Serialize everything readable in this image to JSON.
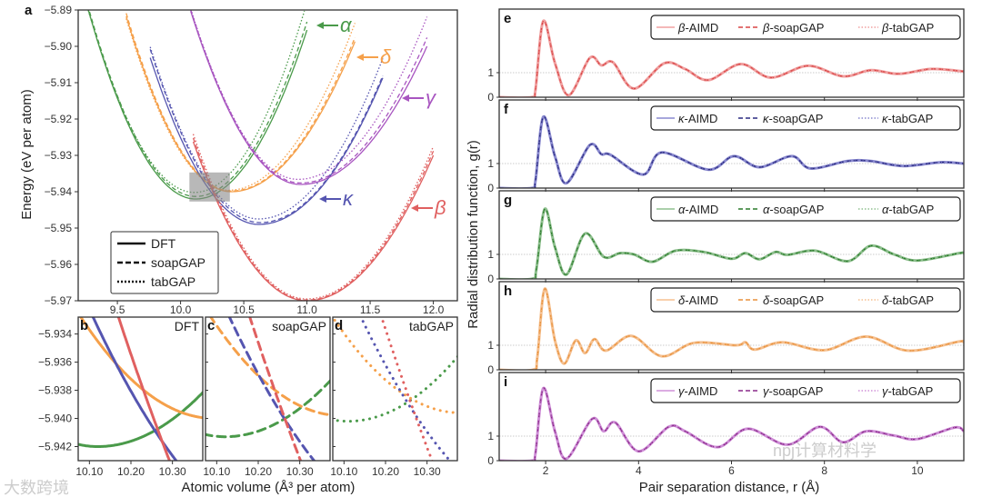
{
  "chart_data": [
    {
      "id": "a",
      "type": "line",
      "panel_label": "a",
      "ylabel": "Energy (eV per atom)",
      "xlim": [
        9.19,
        12.19
      ],
      "ylim": [
        -5.97,
        -5.89
      ],
      "xticks": [
        9.5,
        10.0,
        10.5,
        11.0,
        11.5,
        12.0
      ],
      "xtick_labels": [
        "9.5",
        "10.0",
        "10.5",
        "11.0",
        "11.5",
        "12.0"
      ],
      "yticks": [
        -5.89,
        -5.9,
        -5.91,
        -5.92,
        -5.93,
        -5.94,
        -5.95,
        -5.96,
        -5.97
      ],
      "ytick_labels": [
        "−5.89",
        "−5.90",
        "−5.91",
        "−5.92",
        "−5.93",
        "−5.94",
        "−5.95",
        "−5.96",
        "−5.97"
      ],
      "legend": {
        "placement": "bottom-left",
        "entries": [
          {
            "label": "DFT",
            "style": "solid"
          },
          {
            "label": "soapGAP",
            "style": "dashed"
          },
          {
            "label": "tabGAP",
            "style": "dotted"
          }
        ]
      },
      "highlight_box": {
        "x": [
          10.07,
          10.39
        ],
        "y": [
          -5.9427,
          -5.9347
        ]
      },
      "phases": [
        {
          "name": "α",
          "color": "#4a9a4a",
          "range": [
            9.27,
            11.0
          ],
          "DFT": {
            "V0": 10.12,
            "E0": -5.942,
            "kL": 0.072,
            "kR": 0.06
          },
          "soapGAP": {
            "V0": 10.12,
            "E0": -5.9413,
            "kL": 0.072,
            "kR": 0.062
          },
          "tabGAP": {
            "V0": 10.11,
            "E0": -5.9402,
            "kL": 0.071,
            "kR": 0.066
          }
        },
        {
          "name": "δ",
          "color": "#f5a04a",
          "range": [
            9.57,
            11.38
          ],
          "DFT": {
            "V0": 10.4,
            "E0": -5.94,
            "kL": 0.07,
            "kR": 0.043
          },
          "soapGAP": {
            "V0": 10.4,
            "E0": -5.9398,
            "kL": 0.071,
            "kR": 0.044
          },
          "tabGAP": {
            "V0": 10.38,
            "E0": -5.9396,
            "kL": 0.072,
            "kR": 0.046
          }
        },
        {
          "name": "κ",
          "color": "#5555b0",
          "range": [
            9.76,
            11.6
          ],
          "DFT": {
            "V0": 10.62,
            "E0": -5.949,
            "kL": 0.062,
            "kR": 0.042
          },
          "soapGAP": {
            "V0": 10.63,
            "E0": -5.9485,
            "kL": 0.063,
            "kR": 0.043
          },
          "tabGAP": {
            "V0": 10.62,
            "E0": -5.9475,
            "kL": 0.064,
            "kR": 0.046
          }
        },
        {
          "name": "γ",
          "color": "#a855c0",
          "range": [
            10.05,
            11.95
          ],
          "DFT": {
            "V0": 10.95,
            "E0": -5.938,
            "kL": 0.063,
            "kR": 0.038
          },
          "soapGAP": {
            "V0": 10.95,
            "E0": -5.9376,
            "kL": 0.063,
            "kR": 0.04
          },
          "tabGAP": {
            "V0": 10.93,
            "E0": -5.9366,
            "kL": 0.065,
            "kR": 0.043
          }
        },
        {
          "name": "β",
          "color": "#e06060",
          "range": [
            10.1,
            12.0
          ],
          "DFT": {
            "V0": 11.0,
            "E0": -5.97,
            "kL": 0.054,
            "kR": 0.04
          },
          "soapGAP": {
            "V0": 11.0,
            "E0": -5.9698,
            "kL": 0.055,
            "kR": 0.041
          },
          "tabGAP": {
            "V0": 11.0,
            "E0": -5.9695,
            "kL": 0.056,
            "kR": 0.042
          }
        }
      ]
    },
    {
      "id": "bcd",
      "type": "line",
      "xlabel": "Atomic volume (Å³ per atom)",
      "xlim": [
        10.073,
        10.373
      ],
      "ylim": [
        -5.943,
        -5.9328
      ],
      "xticks": [
        10.1,
        10.2,
        10.3
      ],
      "xtick_labels": [
        "10.10",
        "10.20",
        "10.30"
      ],
      "yticks": [
        -5.934,
        -5.936,
        -5.938,
        -5.94,
        -5.942
      ],
      "ytick_labels": [
        "−5.934",
        "−5.936",
        "−5.938",
        "−5.940",
        "−5.942"
      ],
      "insets": [
        {
          "panel_label": "b",
          "title": "DFT",
          "method": "DFT"
        },
        {
          "panel_label": "c",
          "title": "soapGAP",
          "method": "soapGAP"
        },
        {
          "panel_label": "d",
          "title": "tabGAP",
          "method": "tabGAP"
        }
      ]
    },
    {
      "id": "rdf",
      "type": "line",
      "xlabel": "Pair separation distance, r (Å)",
      "ylabel": "Radial distribution function, g(r)",
      "xlim": [
        1,
        11
      ],
      "ylim": [
        0,
        3.59
      ],
      "xticks": [
        2,
        4,
        6,
        8,
        10
      ],
      "xtick_labels": [
        "2",
        "4",
        "6",
        "8",
        "10"
      ],
      "yticks": [
        0,
        1
      ],
      "ytick_labels": [
        "0",
        "1"
      ],
      "panels": [
        {
          "panel_label": "e",
          "color": "#f0a0a0",
          "dark": "#d94545",
          "legend": [
            "β-AIMD",
            "β-soapGAP",
            "β-tabGAP"
          ],
          "points": [
            [
              1,
              0
            ],
            [
              1.7,
              0
            ],
            [
              1.78,
              0.3
            ],
            [
              1.95,
              3.1
            ],
            [
              2.2,
              1.4
            ],
            [
              2.5,
              0.08
            ],
            [
              2.95,
              1.6
            ],
            [
              3.2,
              1.3
            ],
            [
              3.45,
              1.42
            ],
            [
              3.9,
              0.35
            ],
            [
              4.55,
              1.38
            ],
            [
              5.0,
              1.15
            ],
            [
              5.5,
              0.7
            ],
            [
              6.2,
              1.35
            ],
            [
              6.85,
              0.8
            ],
            [
              7.65,
              1.28
            ],
            [
              8.4,
              0.85
            ],
            [
              9.0,
              1.1
            ],
            [
              9.6,
              0.95
            ],
            [
              10.3,
              1.15
            ],
            [
              11,
              1.05
            ]
          ]
        },
        {
          "panel_label": "f",
          "color": "#8a8ad0",
          "dark": "#2a2a80",
          "legend": [
            "κ-AIMD",
            "κ-soapGAP",
            "κ-tabGAP"
          ],
          "points": [
            [
              1,
              0
            ],
            [
              1.7,
              0
            ],
            [
              1.78,
              0.3
            ],
            [
              1.95,
              2.9
            ],
            [
              2.2,
              1.3
            ],
            [
              2.45,
              0.2
            ],
            [
              2.95,
              1.75
            ],
            [
              3.2,
              1.38
            ],
            [
              3.4,
              1.35
            ],
            [
              4.1,
              0.55
            ],
            [
              4.5,
              1.45
            ],
            [
              5.5,
              0.75
            ],
            [
              6.05,
              1.3
            ],
            [
              6.6,
              0.85
            ],
            [
              7.3,
              1.3
            ],
            [
              7.7,
              0.8
            ],
            [
              8.5,
              1.1
            ],
            [
              9.0,
              1.1
            ],
            [
              9.7,
              0.9
            ],
            [
              10.5,
              1.05
            ],
            [
              11,
              1.0
            ]
          ]
        },
        {
          "panel_label": "g",
          "color": "#8fc08f",
          "dark": "#2a7a2a",
          "legend": [
            "α-AIMD",
            "α-soapGAP",
            "α-tabGAP"
          ],
          "points": [
            [
              1,
              0
            ],
            [
              1.7,
              0
            ],
            [
              1.8,
              0.4
            ],
            [
              1.98,
              2.85
            ],
            [
              2.2,
              1.3
            ],
            [
              2.45,
              0.18
            ],
            [
              2.85,
              1.85
            ],
            [
              3.25,
              0.9
            ],
            [
              3.6,
              1.05
            ],
            [
              3.9,
              1.0
            ],
            [
              4.3,
              0.7
            ],
            [
              4.8,
              1.15
            ],
            [
              5.4,
              1.1
            ],
            [
              6.0,
              0.82
            ],
            [
              6.3,
              1.05
            ],
            [
              6.6,
              0.8
            ],
            [
              6.95,
              1.1
            ],
            [
              7.2,
              0.98
            ],
            [
              7.8,
              1.15
            ],
            [
              8.5,
              0.72
            ],
            [
              9.0,
              1.35
            ],
            [
              9.5,
              1.0
            ],
            [
              10.0,
              0.75
            ],
            [
              10.9,
              1.05
            ],
            [
              11,
              1.05
            ]
          ]
        },
        {
          "panel_label": "h",
          "color": "#f5c090",
          "dark": "#e8903a",
          "legend": [
            "δ-AIMD",
            "δ-soapGAP",
            "δ-tabGAP"
          ],
          "points": [
            [
              1,
              0
            ],
            [
              1.72,
              0
            ],
            [
              1.82,
              0.5
            ],
            [
              1.98,
              3.3
            ],
            [
              2.2,
              1.2
            ],
            [
              2.4,
              0.25
            ],
            [
              2.65,
              1.2
            ],
            [
              2.85,
              0.68
            ],
            [
              3.05,
              1.25
            ],
            [
              3.3,
              0.78
            ],
            [
              3.85,
              1.38
            ],
            [
              4.5,
              0.55
            ],
            [
              5.2,
              1.1
            ],
            [
              6.1,
              1.0
            ],
            [
              6.3,
              1.12
            ],
            [
              6.5,
              0.82
            ],
            [
              7.1,
              1.12
            ],
            [
              8.0,
              0.8
            ],
            [
              8.9,
              1.35
            ],
            [
              9.8,
              0.78
            ],
            [
              10.9,
              1.15
            ],
            [
              11,
              1.12
            ]
          ]
        },
        {
          "panel_label": "i",
          "color": "#d090d8",
          "dark": "#8a2a8a",
          "legend": [
            "γ-AIMD",
            "γ-soapGAP",
            "γ-tabGAP"
          ],
          "points": [
            [
              1,
              0
            ],
            [
              1.7,
              0
            ],
            [
              1.78,
              0.3
            ],
            [
              1.95,
              2.95
            ],
            [
              2.2,
              1.2
            ],
            [
              2.45,
              0.08
            ],
            [
              3.0,
              1.7
            ],
            [
              3.25,
              1.2
            ],
            [
              3.5,
              1.55
            ],
            [
              4.0,
              0.38
            ],
            [
              4.65,
              1.38
            ],
            [
              5.0,
              1.2
            ],
            [
              5.7,
              0.55
            ],
            [
              6.35,
              1.3
            ],
            [
              7.2,
              0.65
            ],
            [
              7.9,
              1.38
            ],
            [
              8.4,
              0.75
            ],
            [
              8.9,
              1.2
            ],
            [
              9.5,
              1.02
            ],
            [
              10.0,
              0.88
            ],
            [
              10.8,
              1.35
            ],
            [
              11,
              1.2
            ]
          ]
        }
      ]
    }
  ],
  "watermarks": [
    "大数跨境",
    "npj计算材料学"
  ]
}
